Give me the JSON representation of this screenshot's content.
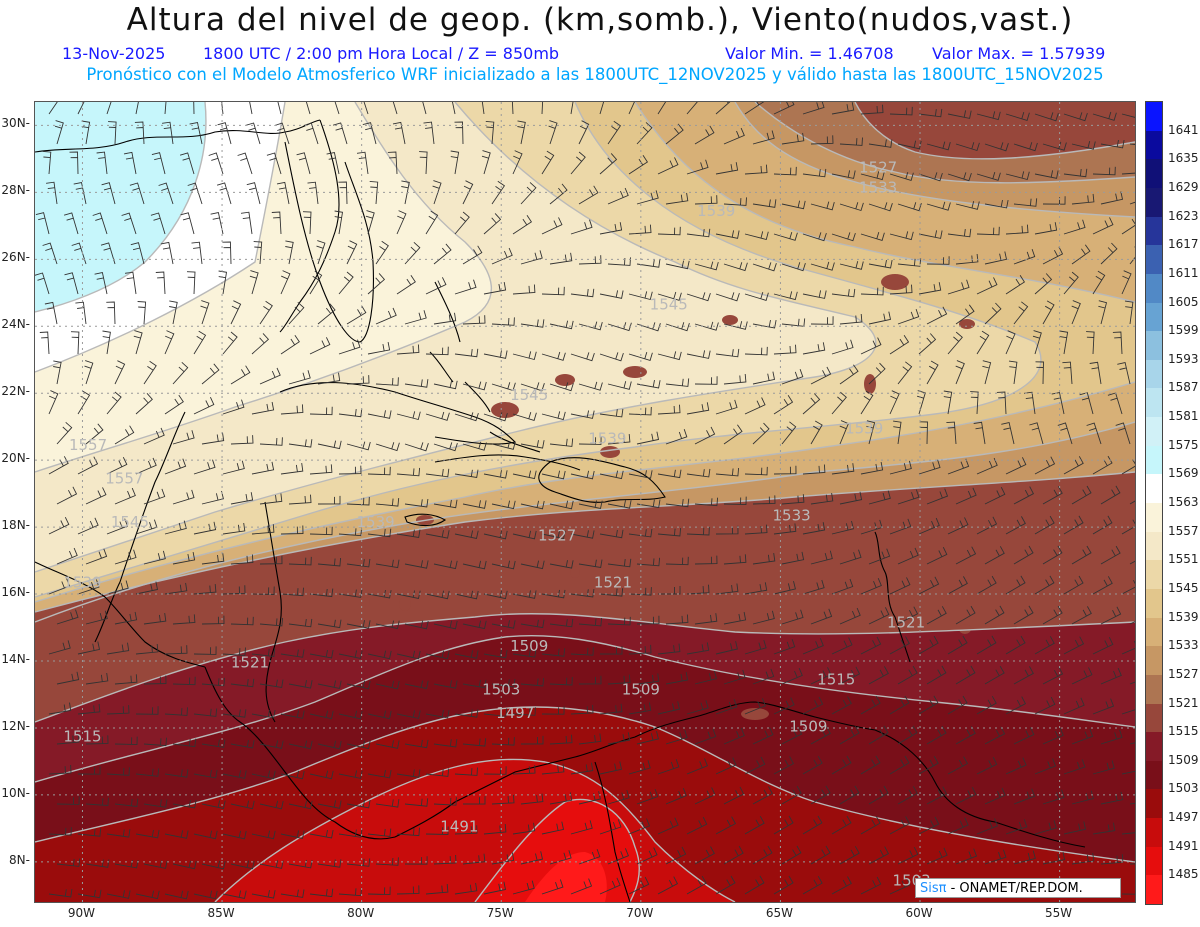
{
  "header": {
    "title": "Altura del nivel de geop. (km,somb.), Viento(nudos,vast.)",
    "date": "13-Nov-2025",
    "time": "1800 UTC / 2:00 pm Hora Local / Z = 850mb",
    "min_value": "Valor Min. = 1.46708",
    "max_value": "Valor Max. = 1.57939",
    "forecast_info": "Pronóstico con el Modelo Atmosferico WRF inicializado a las 1800UTC_12NOV2025 y válido hasta las  1800UTC_15NOV2025"
  },
  "axes": {
    "lat_labels": [
      "30N",
      "28N",
      "26N",
      "24N",
      "22N",
      "20N",
      "18N",
      "16N",
      "14N",
      "12N",
      "10N",
      "8N"
    ],
    "lat_values": [
      30,
      28,
      26,
      24,
      22,
      20,
      18,
      16,
      14,
      12,
      10,
      8
    ],
    "lon_labels": [
      "90W",
      "85W",
      "80W",
      "75W",
      "70W",
      "65W",
      "60W",
      "55W"
    ],
    "lon_values": [
      -90,
      -85,
      -80,
      -75,
      -70,
      -65,
      -60,
      -55
    ],
    "lon_range": [
      -91.7,
      -52.3
    ],
    "lat_range": [
      6.8,
      30.7
    ]
  },
  "colorbar": {
    "labels": [
      "1641",
      "1635",
      "1629",
      "1623",
      "1617",
      "1611",
      "1605",
      "1599",
      "1593",
      "1587",
      "1581",
      "1575",
      "1569",
      "1563",
      "1557",
      "1551",
      "1545",
      "1539",
      "1533",
      "1527",
      "1521",
      "1515",
      "1509",
      "1503",
      "1497",
      "1491",
      "1485"
    ],
    "colors": [
      "#0a14ff",
      "#0a0a9e",
      "#101077",
      "#181873",
      "#26359a",
      "#3b61b1",
      "#5189c6",
      "#67a3d3",
      "#8cc0df",
      "#a8d5ea",
      "#bde5f1",
      "#d1f1f7",
      "#c6f6fb",
      "#ffffff",
      "#faf3da",
      "#f4e8c8",
      "#ecd8a8",
      "#e2c68c",
      "#d7b077",
      "#c69764",
      "#ad7552",
      "#97473b",
      "#851a27",
      "#790f19",
      "#9a0c0c",
      "#c80c0c",
      "#e60d0d",
      "#ff1a1a"
    ]
  },
  "contour_labels": [
    {
      "text": "1557",
      "lon": -89.8,
      "lat": 20.3
    },
    {
      "text": "1557",
      "lon": -88.5,
      "lat": 19.3
    },
    {
      "text": "1545",
      "lon": -88.3,
      "lat": 18.0
    },
    {
      "text": "1539",
      "lon": -90.0,
      "lat": 16.2
    },
    {
      "text": "1539",
      "lon": -79.5,
      "lat": 18.0
    },
    {
      "text": "1545",
      "lon": -74.0,
      "lat": 21.8
    },
    {
      "text": "1539",
      "lon": -71.2,
      "lat": 20.5
    },
    {
      "text": "1545",
      "lon": -69.0,
      "lat": 24.5
    },
    {
      "text": "1539",
      "lon": -67.3,
      "lat": 27.3
    },
    {
      "text": "1533",
      "lon": -61.5,
      "lat": 28.0
    },
    {
      "text": "1527",
      "lon": -61.5,
      "lat": 28.6
    },
    {
      "text": "1539",
      "lon": -62.0,
      "lat": 20.8
    },
    {
      "text": "1533",
      "lon": -64.6,
      "lat": 18.2
    },
    {
      "text": "1527",
      "lon": -73.0,
      "lat": 17.6
    },
    {
      "text": "1521",
      "lon": -71.0,
      "lat": 16.2
    },
    {
      "text": "1521",
      "lon": -60.5,
      "lat": 15.0
    },
    {
      "text": "1509",
      "lon": -74.0,
      "lat": 14.3
    },
    {
      "text": "1515",
      "lon": -63.0,
      "lat": 13.3
    },
    {
      "text": "1503",
      "lon": -75.0,
      "lat": 13.0
    },
    {
      "text": "1509",
      "lon": -70.0,
      "lat": 13.0
    },
    {
      "text": "1509",
      "lon": -64.0,
      "lat": 11.9
    },
    {
      "text": "1497",
      "lon": -74.5,
      "lat": 12.3
    },
    {
      "text": "1515",
      "lon": -90.0,
      "lat": 11.6
    },
    {
      "text": "1491",
      "lon": -76.5,
      "lat": 8.9
    },
    {
      "text": "1503",
      "lon": -60.3,
      "lat": 7.3
    },
    {
      "text": "1521",
      "lon": -84.0,
      "lat": 13.8
    }
  ],
  "credit": {
    "brand": "Sisπ",
    "text": " - ONAMET/REP.DOM."
  },
  "colors": {
    "title": "#111111",
    "subtitle": "#1a1aff",
    "forecast": "#00a6ff",
    "contour": "#b9b9b9",
    "coast": "#000000",
    "barb": "#333333"
  }
}
